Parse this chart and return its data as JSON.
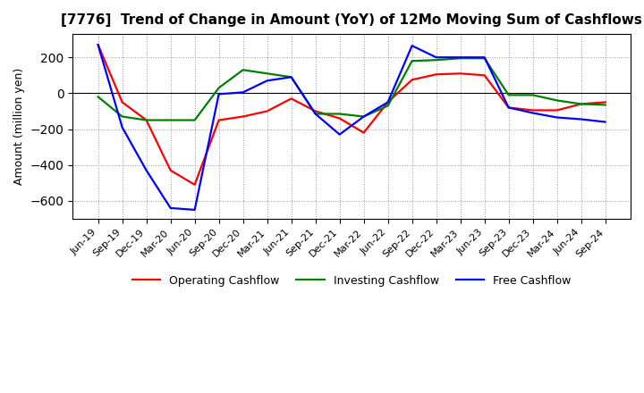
{
  "title": "[7776]  Trend of Change in Amount (YoY) of 12Mo Moving Sum of Cashflows",
  "ylabel": "Amount (million yen)",
  "x_labels": [
    "Jun-19",
    "Sep-19",
    "Dec-19",
    "Mar-20",
    "Jun-20",
    "Sep-20",
    "Dec-20",
    "Mar-21",
    "Jun-21",
    "Sep-21",
    "Dec-21",
    "Mar-22",
    "Jun-22",
    "Sep-22",
    "Dec-22",
    "Mar-23",
    "Jun-23",
    "Sep-23",
    "Dec-23",
    "Mar-24",
    "Jun-24",
    "Sep-24"
  ],
  "operating": [
    270,
    -50,
    -150,
    -430,
    -510,
    -150,
    -130,
    -100,
    -30,
    -100,
    -140,
    -220,
    -50,
    75,
    105,
    110,
    100,
    -80,
    -95,
    -95,
    -60,
    -50
  ],
  "investing": [
    -20,
    -130,
    -150,
    -150,
    -150,
    30,
    130,
    110,
    90,
    -115,
    -115,
    -130,
    -70,
    180,
    185,
    195,
    195,
    -10,
    -10,
    -40,
    -60,
    -65
  ],
  "free": [
    270,
    -190,
    -430,
    -640,
    -650,
    -5,
    5,
    70,
    90,
    -115,
    -230,
    -130,
    -50,
    265,
    200,
    200,
    200,
    -80,
    -110,
    -135,
    -145,
    -160
  ],
  "ylim": [
    -700,
    330
  ],
  "yticks": [
    -600,
    -400,
    -200,
    0,
    200
  ],
  "operating_color": "#ff0000",
  "investing_color": "#008000",
  "free_color": "#0000ff",
  "bg_color": "#ffffff",
  "grid_color": "#999999",
  "linewidth": 1.6,
  "title_fontsize": 11,
  "axis_fontsize": 8,
  "ylabel_fontsize": 9
}
